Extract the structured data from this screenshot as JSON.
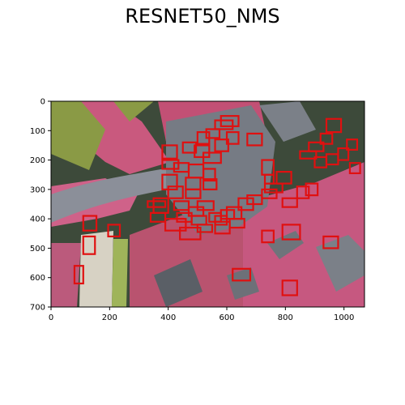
{
  "figure": {
    "title": "RESNET50_NMS"
  },
  "image": {
    "description_colors": {
      "background": "#3d4a3a",
      "vegetation": "#d8537a",
      "pavement": "#8b8f99",
      "roof_green": "#8a9a45",
      "roof_gray": "#7b8088",
      "shadow": "#2f3a2f"
    }
  },
  "axes": {
    "x_ticks": [
      "0",
      "200",
      "400",
      "600",
      "800",
      "1000"
    ],
    "x_tick_values": [
      0,
      200,
      400,
      600,
      800,
      1000
    ],
    "y_ticks": [
      "0",
      "100",
      "200",
      "300",
      "400",
      "500",
      "600",
      "700"
    ],
    "y_tick_values": [
      0,
      100,
      200,
      300,
      400,
      500,
      600,
      700
    ],
    "xlim": [
      0,
      1070
    ],
    "ylim": [
      700,
      0
    ]
  },
  "detections": {
    "box_color": "#e01010",
    "boxes": [
      [
        580,
        50,
        640,
        85
      ],
      [
        560,
        65,
        620,
        95
      ],
      [
        530,
        95,
        575,
        125
      ],
      [
        500,
        105,
        540,
        145
      ],
      [
        450,
        140,
        495,
        175
      ],
      [
        380,
        150,
        430,
        195
      ],
      [
        600,
        105,
        640,
        145
      ],
      [
        670,
        110,
        720,
        150
      ],
      [
        490,
        150,
        540,
        190
      ],
      [
        560,
        130,
        605,
        170
      ],
      [
        520,
        175,
        580,
        210
      ],
      [
        380,
        200,
        435,
        230
      ],
      [
        420,
        210,
        470,
        240
      ],
      [
        470,
        215,
        520,
        260
      ],
      [
        520,
        230,
        560,
        270
      ],
      [
        380,
        250,
        430,
        300
      ],
      [
        460,
        260,
        510,
        300
      ],
      [
        520,
        265,
        565,
        300
      ],
      [
        400,
        290,
        450,
        330
      ],
      [
        460,
        300,
        510,
        330
      ],
      [
        330,
        340,
        390,
        360
      ],
      [
        350,
        330,
        400,
        380
      ],
      [
        420,
        340,
        470,
        370
      ],
      [
        470,
        360,
        520,
        390
      ],
      [
        500,
        340,
        555,
        370
      ],
      [
        340,
        380,
        390,
        410
      ],
      [
        390,
        400,
        460,
        440
      ],
      [
        440,
        430,
        510,
        470
      ],
      [
        480,
        390,
        530,
        420
      ],
      [
        540,
        380,
        580,
        410
      ],
      [
        560,
        410,
        610,
        450
      ],
      [
        600,
        360,
        650,
        400
      ],
      [
        640,
        330,
        690,
        370
      ],
      [
        670,
        320,
        720,
        350
      ],
      [
        610,
        400,
        660,
        430
      ],
      [
        720,
        300,
        770,
        330
      ],
      [
        730,
        280,
        790,
        310
      ],
      [
        730,
        250,
        760,
        280
      ],
      [
        720,
        200,
        760,
        250
      ],
      [
        770,
        240,
        820,
        280
      ],
      [
        790,
        330,
        840,
        360
      ],
      [
        840,
        290,
        880,
        330
      ],
      [
        870,
        280,
        910,
        320
      ],
      [
        850,
        170,
        905,
        195
      ],
      [
        880,
        140,
        930,
        170
      ],
      [
        920,
        110,
        960,
        145
      ],
      [
        940,
        60,
        990,
        105
      ],
      [
        900,
        190,
        940,
        225
      ],
      [
        940,
        180,
        980,
        215
      ],
      [
        980,
        160,
        1015,
        200
      ],
      [
        1010,
        130,
        1045,
        165
      ],
      [
        1020,
        210,
        1055,
        245
      ],
      [
        110,
        390,
        155,
        440
      ],
      [
        195,
        420,
        235,
        460
      ],
      [
        110,
        460,
        150,
        520
      ],
      [
        80,
        560,
        110,
        620
      ],
      [
        720,
        440,
        760,
        480
      ],
      [
        790,
        420,
        850,
        470
      ],
      [
        930,
        460,
        980,
        500
      ],
      [
        620,
        570,
        680,
        610
      ],
      [
        790,
        610,
        840,
        660
      ],
      [
        580,
        370,
        625,
        400
      ],
      [
        560,
        390,
        600,
        420
      ],
      [
        430,
        380,
        480,
        410
      ],
      [
        500,
        420,
        550,
        445
      ]
    ]
  }
}
